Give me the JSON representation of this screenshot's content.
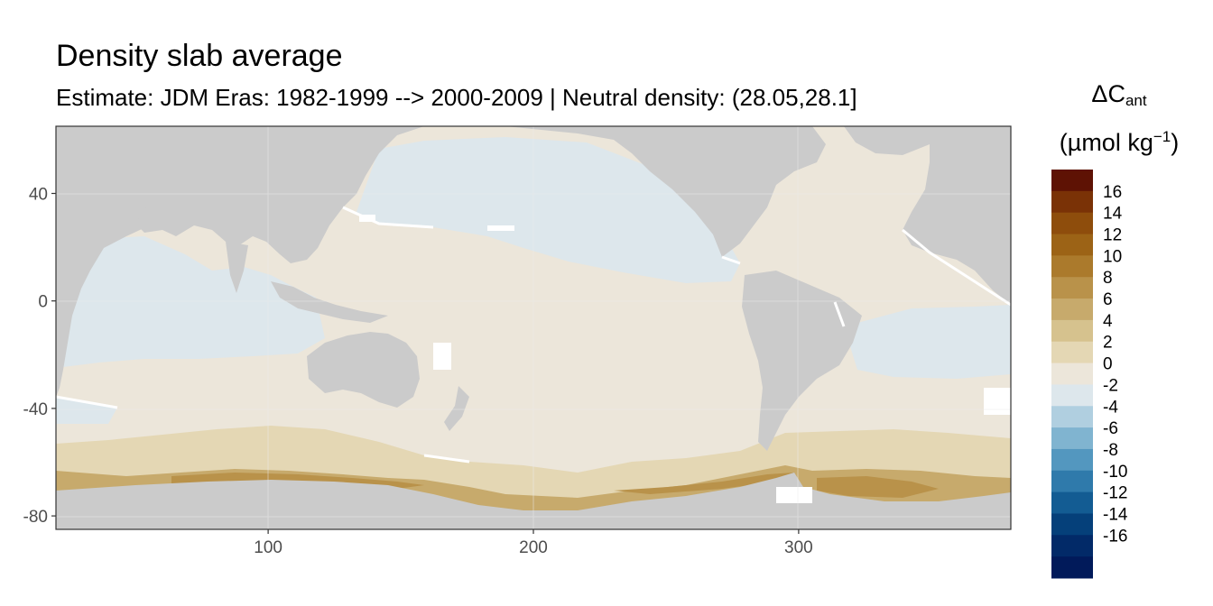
{
  "chart_data": {
    "type": "heatmap",
    "title": "Density slab average",
    "subtitle": "Estimate: JDM Eras: 1982-1999 --> 2000-2009 | Neutral density: (28.05,28.1]",
    "xlabel": "",
    "ylabel": "",
    "x_ticks": [
      100,
      200,
      300
    ],
    "y_ticks": [
      40,
      0,
      -40,
      -80
    ],
    "xlim": [
      20,
      380
    ],
    "ylim": [
      -85,
      65
    ],
    "grid": true,
    "legend_position": "right",
    "legend": {
      "title_main": "ΔC",
      "title_sub": "ant",
      "unit_prefix": "(µmol kg",
      "unit_sup": "−1",
      "unit_suffix": ")",
      "bins": [
        {
          "label": "16",
          "color": "#5e1204"
        },
        {
          "label": "14",
          "color": "#7a3206"
        },
        {
          "label": "12",
          "color": "#8e4d0c"
        },
        {
          "label": "10",
          "color": "#9c6316"
        },
        {
          "label": "8",
          "color": "#ab7a2c"
        },
        {
          "label": "6",
          "color": "#b9924a"
        },
        {
          "label": "4",
          "color": "#c7aa6c"
        },
        {
          "label": "2",
          "color": "#d6c28e"
        },
        {
          "label": "0",
          "color": "#e4d7b4"
        },
        {
          "label": "-2",
          "color": "#ece6da"
        },
        {
          "label": "-4",
          "color": "#dde7ec"
        },
        {
          "label": "-6",
          "color": "#b0cfe0"
        },
        {
          "label": "-8",
          "color": "#80b4d0"
        },
        {
          "label": "-10",
          "color": "#5397bf"
        },
        {
          "label": "-12",
          "color": "#2f7aab"
        },
        {
          "label": "-14",
          "color": "#135c93"
        },
        {
          "label": "-16",
          "color": "#05407a"
        }
      ],
      "extra_bins_colors": [
        "#022a68",
        "#011a5a"
      ]
    },
    "colors": {
      "land": "#cbcbcb",
      "no_data": "#ffffff",
      "panel_border": "#333333"
    }
  }
}
